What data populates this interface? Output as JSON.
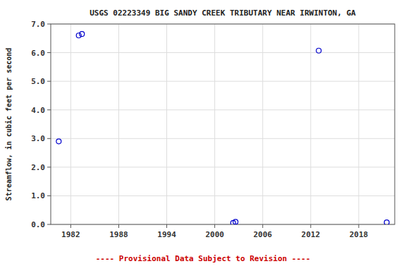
{
  "chart_data": {
    "type": "scatter",
    "title": "USGS 02223349 BIG SANDY CREEK TRIBUTARY NEAR IRWINTON, GA",
    "y_label": "Streamflow, in cubic feet per second",
    "x": [
      1980.5,
      1983.0,
      1983.4,
      2002.3,
      2002.6,
      2013.0,
      2021.5
    ],
    "values": [
      2.9,
      6.6,
      6.65,
      0.05,
      0.09,
      6.07,
      0.07
    ],
    "color": "#0000CC",
    "marker": "circle",
    "xlim": [
      1979.5,
      2022.5
    ],
    "ylim": [
      0.0,
      7.0
    ],
    "xticks": [
      1982,
      1988,
      1994,
      2000,
      2006,
      2012,
      2018
    ],
    "yticks": [
      {
        "value": 0.0,
        "label": "0.0"
      },
      {
        "value": 1.0,
        "label": "1.0"
      },
      {
        "value": 2.0,
        "label": "2.0"
      },
      {
        "value": 3.0,
        "label": "3.0"
      },
      {
        "value": 4.0,
        "label": "4.0"
      },
      {
        "value": 5.0,
        "label": "5.0"
      },
      {
        "value": 6.0,
        "label": "6.0"
      },
      {
        "value": 7.0,
        "label": "7.0"
      }
    ],
    "grid": true,
    "annotations": [
      {
        "text": "---- Provisional Data Subject to Revision ----",
        "color": "#cc0000"
      }
    ]
  }
}
